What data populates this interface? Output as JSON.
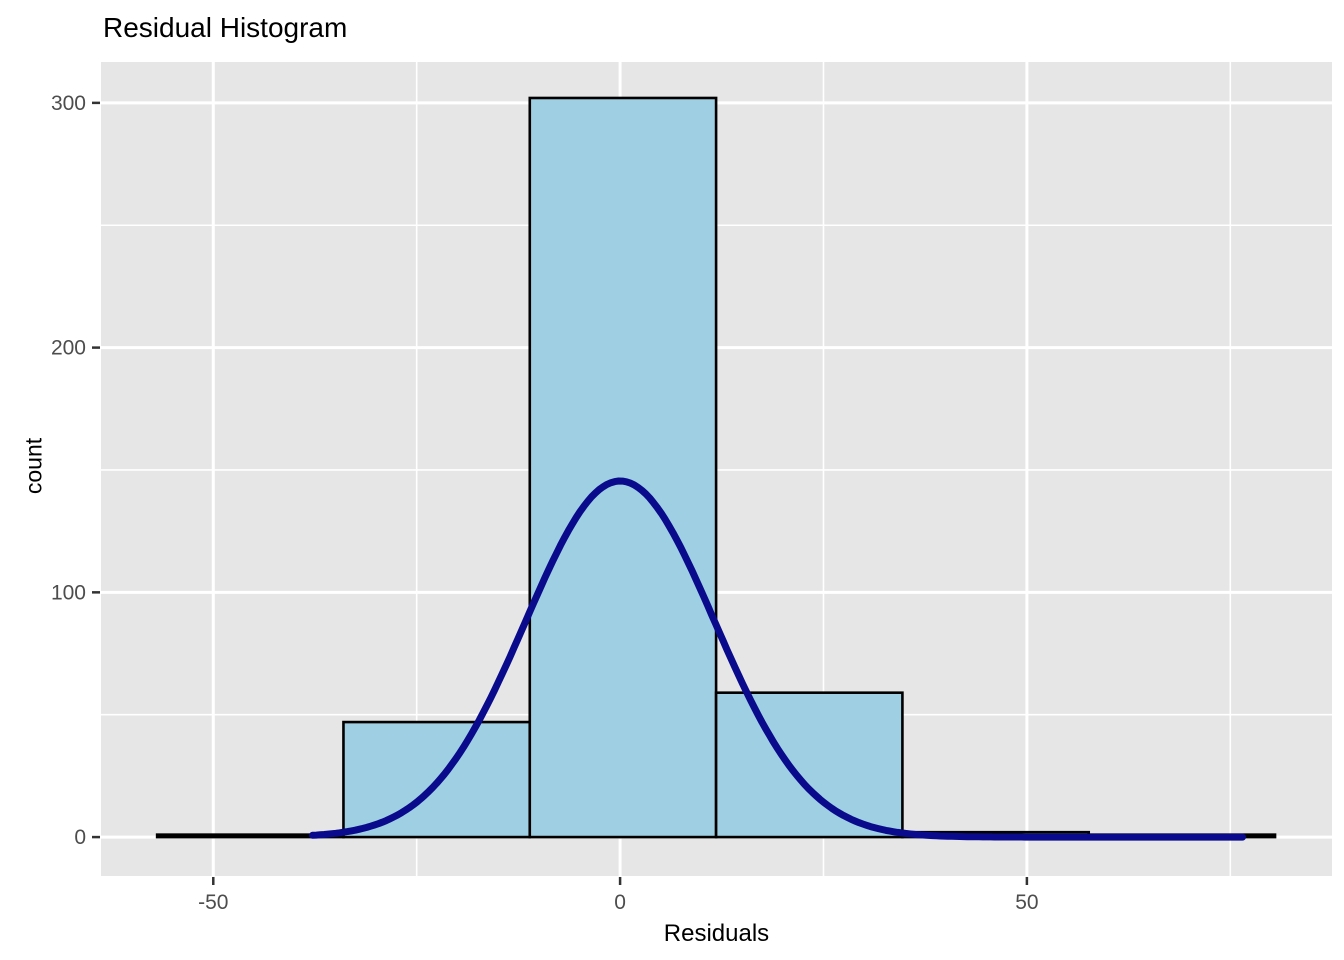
{
  "figure": {
    "title": "Residual Histogram",
    "x_axis_label": "Residuals",
    "y_axis_label": "count"
  },
  "colors": {
    "panel_background": "#E6E6E6",
    "grid_major": "#FFFFFF",
    "grid_minor": "#FFFFFF",
    "bar_fill": "#9ECFE2",
    "bar_stroke": "#000000",
    "curve": "#0A0A8C",
    "tick_mark": "#333333",
    "tick_label": "#4D4D4D",
    "title": "#000000"
  },
  "chart_data": {
    "type": "bar",
    "subtype": "histogram_with_normal_curve",
    "title": "Residual Histogram",
    "xlabel": "Residuals",
    "ylabel": "count",
    "bin_edges": [
      -56.9,
      -34.0,
      -11.1,
      11.8,
      34.7,
      57.6,
      80.5
    ],
    "counts": [
      1,
      47,
      302,
      59,
      2,
      1
    ],
    "binwidth": 22.9,
    "x_ticks": [
      -50,
      0,
      50
    ],
    "x_minor_ticks": [
      -25,
      25,
      75
    ],
    "y_ticks": [
      0,
      100,
      200,
      300
    ],
    "y_minor_ticks": [
      50,
      150,
      250
    ],
    "xlim": [
      -63.8,
      87.5
    ],
    "ylim": [
      -15.9,
      316.7
    ],
    "curve": {
      "shape": "gaussian",
      "mean": 0,
      "sd": 11.6,
      "peak_count": 145.5,
      "x_start": -37.8,
      "x_end": 76.5
    },
    "grid": true,
    "legend": false
  }
}
